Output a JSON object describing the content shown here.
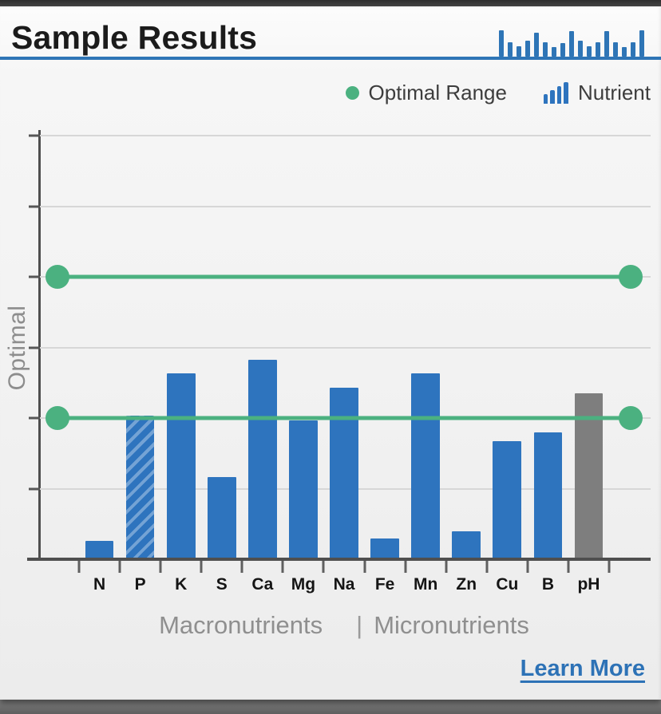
{
  "header": {
    "title": "Sample Results",
    "accent_color": "#2e75b6"
  },
  "legend": {
    "optimal": {
      "label": "Optimal Range",
      "color": "#4bb180"
    },
    "nutrient": {
      "label": "Nutrient",
      "color": "#2e74be"
    }
  },
  "chart_data": {
    "type": "bar",
    "title": "Sample Results",
    "ylabel": "Optimal",
    "xlabel": "",
    "ylim": [
      0,
      6
    ],
    "grid": true,
    "grid_levels": [
      1,
      2,
      3,
      4,
      5,
      6
    ],
    "optimal_range": {
      "low": 2,
      "high": 4,
      "color": "#4bb180"
    },
    "categories": [
      "N",
      "P",
      "K",
      "S",
      "Ca",
      "Mg",
      "Na",
      "Fe",
      "Mn",
      "Zn",
      "Cu",
      "B",
      "pH"
    ],
    "values": [
      0.26,
      2.03,
      2.63,
      1.16,
      2.82,
      1.97,
      2.43,
      0.29,
      2.63,
      0.4,
      1.67,
      1.8,
      2.35
    ],
    "bar_styles": [
      "solid",
      "hatched",
      "solid",
      "solid",
      "solid",
      "solid",
      "solid",
      "solid",
      "solid",
      "solid",
      "solid",
      "solid",
      "neutral"
    ],
    "bar_color": "#2e74be",
    "hatch_color": "#74a3d5",
    "neutral_color": "#7e7e7e",
    "group_labels": {
      "left": "Macronutrients",
      "separator": "|",
      "right": "Micronutrients"
    },
    "legend_position": "top-right"
  },
  "footer": {
    "link": "Learn More",
    "link_color": "#2d72b6"
  },
  "icons": {
    "header_chart_bars": [
      33,
      18,
      13,
      20,
      30,
      18,
      12,
      17,
      32,
      20,
      13,
      18,
      32,
      18,
      12,
      18,
      33
    ],
    "legend_nutrient_bars": [
      12,
      17,
      22,
      27
    ]
  }
}
